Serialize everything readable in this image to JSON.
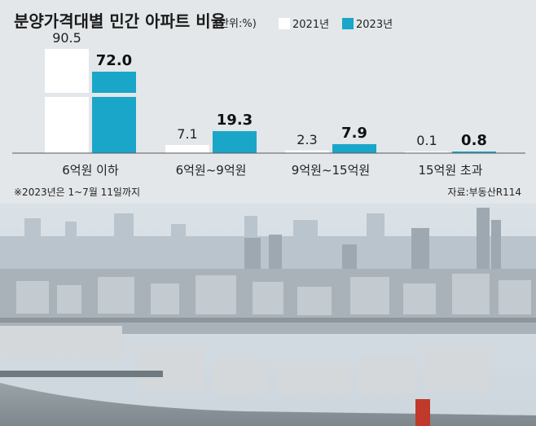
{
  "chart_data": {
    "type": "bar",
    "title": "분양가격대별 민간 아파트 비율",
    "unit": "(단위:%)",
    "categories": [
      "6억원 이하",
      "6억원~9억원",
      "9억원~15억원",
      "15억원 초과"
    ],
    "series": [
      {
        "name": "2021년",
        "values": [
          90.5,
          7.1,
          2.3,
          0.1
        ],
        "labels": [
          "90.5",
          "7.1",
          "2.3",
          "0.1"
        ],
        "color": "#ffffff"
      },
      {
        "name": "2023년",
        "values": [
          72.0,
          19.3,
          7.9,
          0.8
        ],
        "labels": [
          "72.0",
          "19.3",
          "7.9",
          "0.8"
        ],
        "color": "#1aa6c9"
      }
    ],
    "legend_position": "top-right",
    "broken_axis": true,
    "grid": false
  },
  "footnote": "※2023년은 1~7월 11일까지",
  "source": "자료:부동산R114",
  "colors": {
    "panel": "#e3e7ea",
    "accent": "#1aa6c9"
  }
}
